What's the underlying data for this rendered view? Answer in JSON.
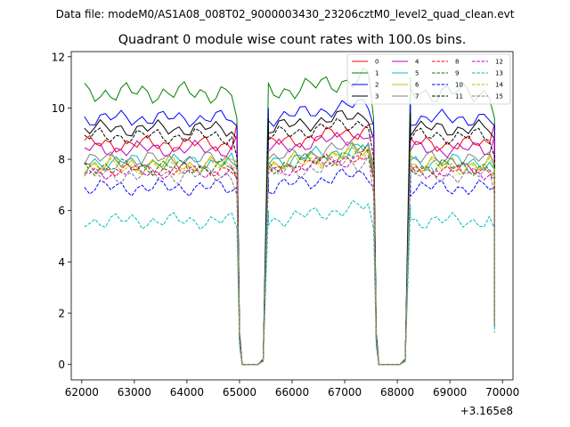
{
  "suptitle": "Data file: modeM0/AS1A08_008T02_9000003430_23206cztM0_level2_quad_clean.evt",
  "chart_data": {
    "type": "line",
    "title": "Quadrant 0 module wise count rates with 100.0s bins.",
    "xlabel": "",
    "ylabel": "",
    "x_offset_label": "+3.165e8",
    "xlim": [
      61800,
      70200
    ],
    "ylim": [
      -0.6,
      12.2
    ],
    "x_ticks": [
      62000,
      63000,
      64000,
      65000,
      66000,
      67000,
      68000,
      69000,
      70000
    ],
    "x_tick_labels": [
      "62000",
      "63000",
      "64000",
      "65000",
      "66000",
      "67000",
      "68000",
      "69000",
      "70000"
    ],
    "y_ticks": [
      0,
      2,
      4,
      6,
      8,
      10,
      12
    ],
    "y_tick_labels": [
      "0",
      "2",
      "4",
      "6",
      "8",
      "10",
      "12"
    ],
    "grid": false,
    "legend_location": "upper right",
    "segments": [
      {
        "start": 62050,
        "end": 64950
      },
      {
        "start": 65550,
        "end": 67550
      },
      {
        "start": 68250,
        "end": 69850
      }
    ],
    "gaps": [
      {
        "from": 64950,
        "to": 65550,
        "x": [
          64950,
          65000,
          65050,
          65150,
          65250,
          65350,
          65450,
          65550
        ]
      },
      {
        "from": 67550,
        "to": 68250,
        "x": [
          67550,
          67600,
          67650,
          67750,
          67850,
          67950,
          68050,
          68150,
          68250
        ]
      },
      {
        "from": 69850,
        "to": 69850,
        "x": [
          69850,
          69850
        ]
      }
    ],
    "series": [
      {
        "name": "0",
        "color": "#ff0000",
        "dash": "solid",
        "base": 8.6,
        "amp": 0.35,
        "edge_end": 9.4,
        "phase": 0.3
      },
      {
        "name": "1",
        "color": "#008000",
        "dash": "solid",
        "base": 10.6,
        "amp": 0.45,
        "edge_end": 9.6,
        "phase": 1.1
      },
      {
        "name": "2",
        "color": "#0000ff",
        "dash": "solid",
        "base": 9.6,
        "amp": 0.35,
        "edge_end": 9.3,
        "phase": 2.0
      },
      {
        "name": "3",
        "color": "#000000",
        "dash": "solid",
        "base": 9.2,
        "amp": 0.35,
        "edge_end": 8.8,
        "phase": 2.7
      },
      {
        "name": "4",
        "color": "#bf00bf",
        "dash": "solid",
        "base": 8.4,
        "amp": 0.35,
        "edge_end": 8.9,
        "phase": 3.4
      },
      {
        "name": "5",
        "color": "#00bfbf",
        "dash": "solid",
        "base": 7.9,
        "amp": 0.35,
        "edge_end": 7.6,
        "phase": 4.2
      },
      {
        "name": "6",
        "color": "#bfbf00",
        "dash": "solid",
        "base": 7.8,
        "amp": 0.4,
        "edge_end": 7.9,
        "phase": 5.0
      },
      {
        "name": "7",
        "color": "#808080",
        "dash": "solid",
        "base": 8.0,
        "amp": 0.35,
        "edge_end": 7.7,
        "phase": 5.7
      },
      {
        "name": "8",
        "color": "#ff0000",
        "dash": "dashed",
        "base": 7.6,
        "amp": 0.3,
        "edge_end": 7.3,
        "phase": 0.8
      },
      {
        "name": "9",
        "color": "#008000",
        "dash": "dashed",
        "base": 7.7,
        "amp": 0.35,
        "edge_end": 7.4,
        "phase": 1.6
      },
      {
        "name": "10",
        "color": "#0000ff",
        "dash": "dashed",
        "base": 6.9,
        "amp": 0.35,
        "edge_end": 6.9,
        "phase": 2.4
      },
      {
        "name": "11",
        "color": "#000000",
        "dash": "dashed",
        "base": 8.9,
        "amp": 0.35,
        "edge_end": 8.1,
        "phase": 3.1
      },
      {
        "name": "12",
        "color": "#bf00bf",
        "dash": "dashed",
        "base": 7.5,
        "amp": 0.3,
        "edge_end": 7.2,
        "phase": 3.9
      },
      {
        "name": "13",
        "color": "#00bfbf",
        "dash": "dashed",
        "base": 5.6,
        "amp": 0.35,
        "edge_end": 5.3,
        "phase": 4.6
      },
      {
        "name": "14",
        "color": "#bfbf00",
        "dash": "dashed",
        "base": 7.7,
        "amp": 0.35,
        "edge_end": 7.6,
        "phase": 5.3
      },
      {
        "name": "15",
        "color": "#808080",
        "dash": "dashed",
        "base": 7.4,
        "amp": 0.4,
        "edge_end": 6.6,
        "phase": 6.0
      }
    ]
  }
}
